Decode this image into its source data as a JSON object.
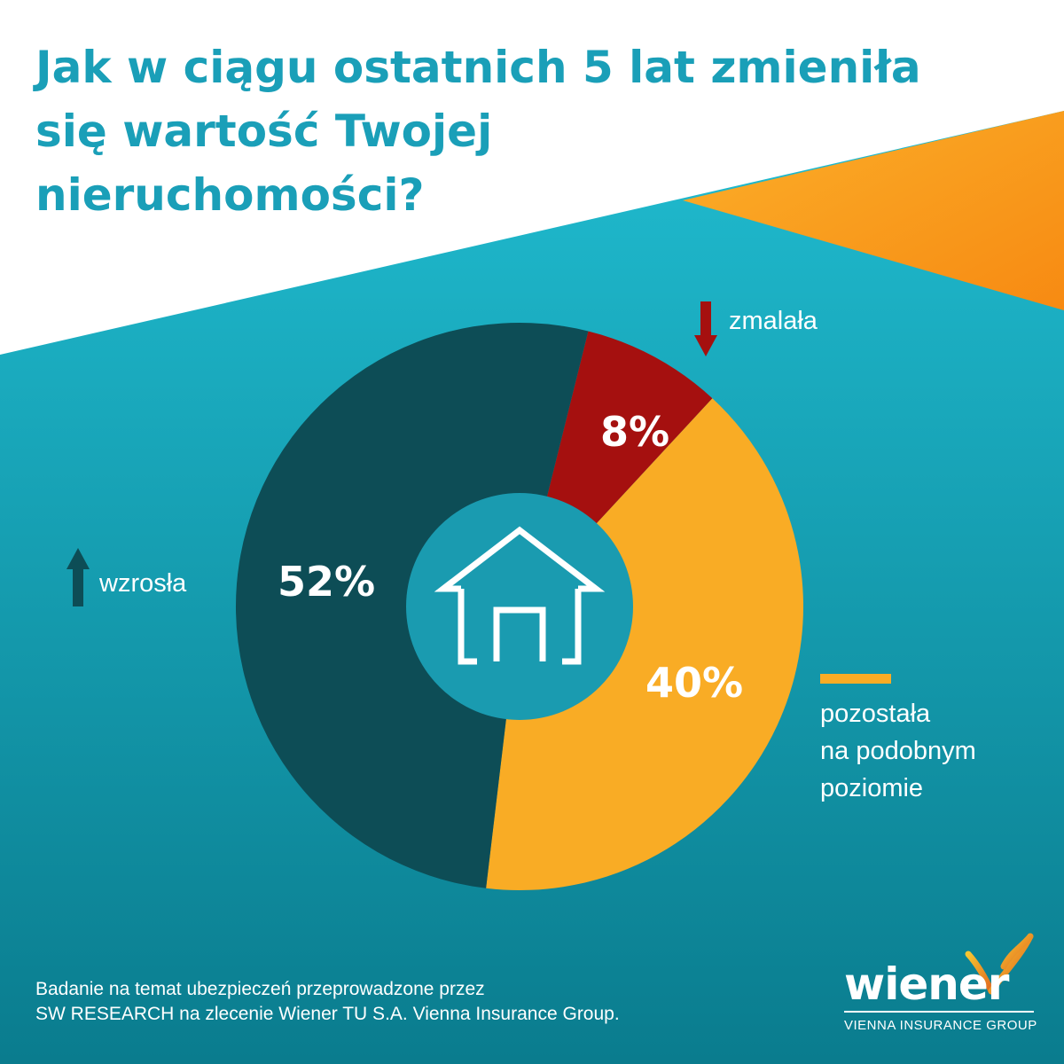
{
  "title": {
    "line1": "Jak w ciągu ostatnich 5 lat zmieniła",
    "line2": "się wartość Twojej",
    "line3": "nieruchomości?"
  },
  "colors": {
    "title": "#1a9fb8",
    "bg_top": "#20bcd0",
    "bg_bottom": "#0a7c8e",
    "accent_orange": "#f99d1c",
    "increase": "#0d4d56",
    "decrease": "#a5100f",
    "same": "#f9ac25",
    "hole": "#1a9bb0"
  },
  "chart_data": {
    "type": "pie",
    "slices": [
      {
        "label": "zmalała",
        "value": 8,
        "display": "8%",
        "color": "#a5100f"
      },
      {
        "label": "pozostała na podobnym poziomie",
        "value": 40,
        "display": "40%",
        "color": "#f9ac25"
      },
      {
        "label": "wzrosła",
        "value": 52,
        "display": "52%",
        "color": "#0d4d56"
      }
    ],
    "donut": true
  },
  "legend": {
    "decrease_text": "zmalała",
    "increase_text": "wzrosła",
    "same_line1": "pozostała",
    "same_line2": "na podobnym",
    "same_line3": "poziomie"
  },
  "center_icon": "house-icon",
  "footer": {
    "line1": "Badanie na temat ubezpieczeń przeprowadzone przez",
    "line2": "SW RESEARCH na zlecenie Wiener TU S.A. Vienna Insurance Group."
  },
  "logo": {
    "wordmark": "wiener",
    "tagline": "VIENNA INSURANCE GROUP"
  }
}
